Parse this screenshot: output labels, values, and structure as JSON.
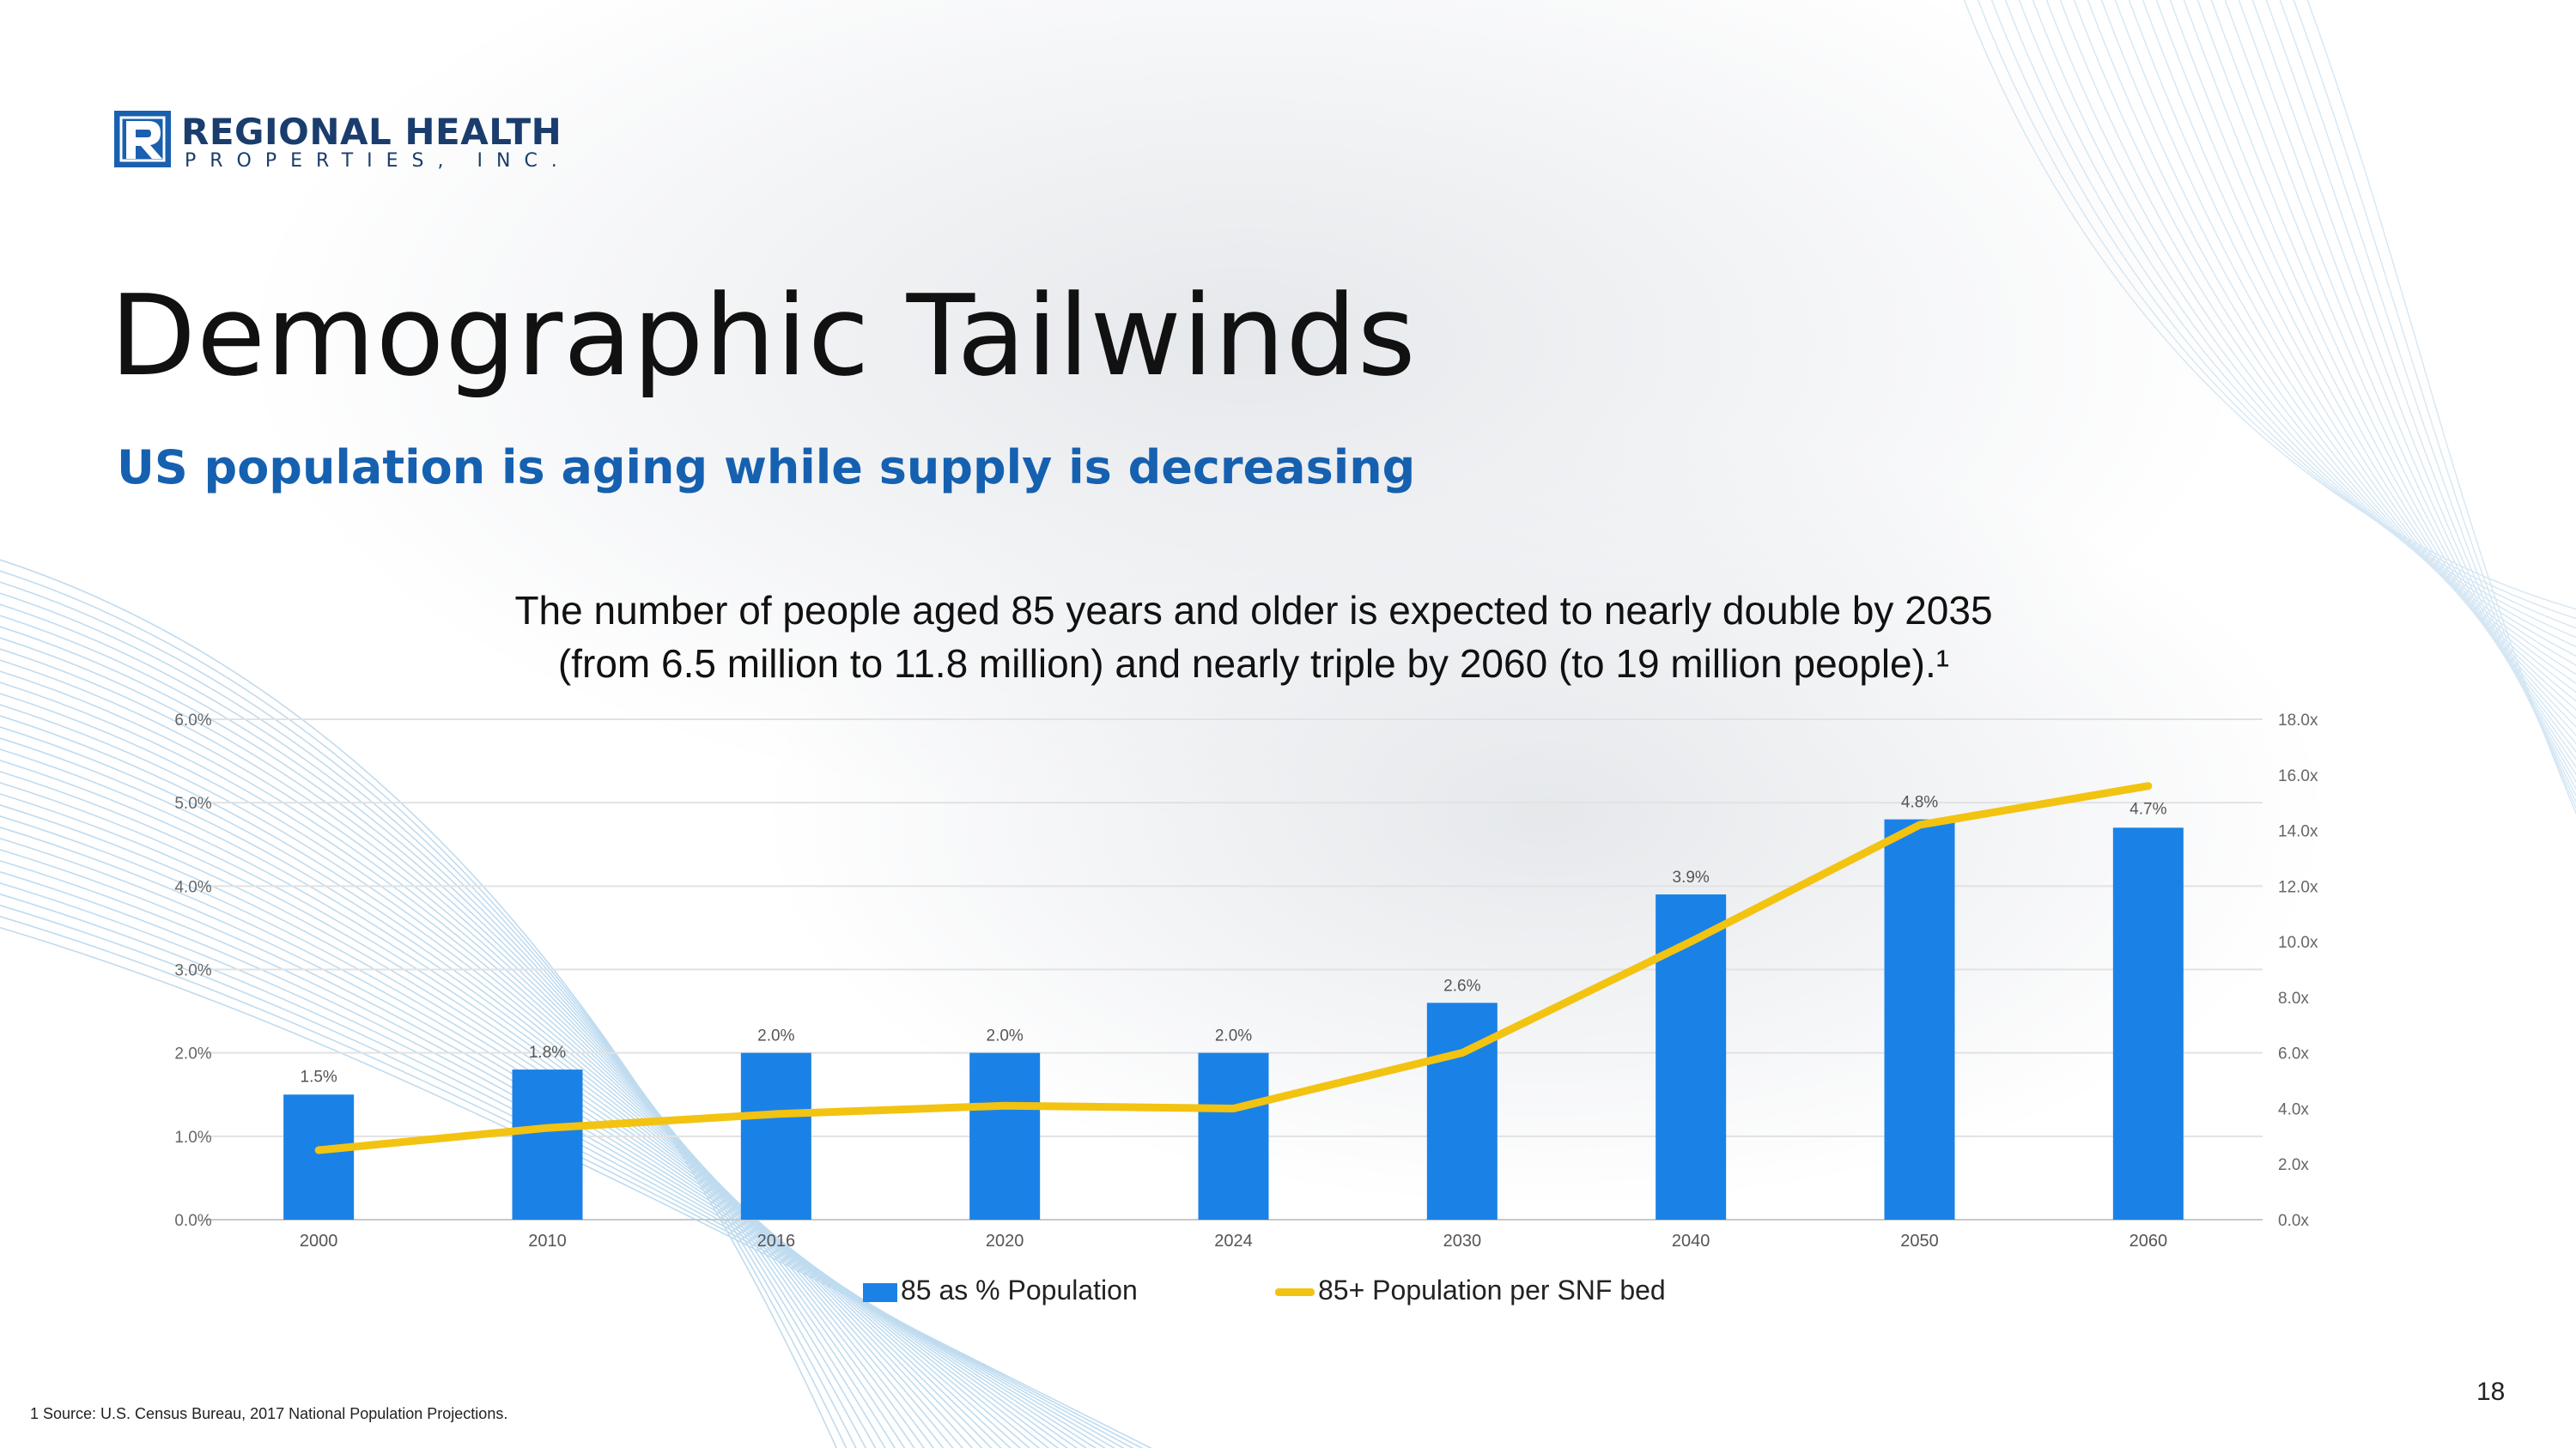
{
  "logo": {
    "line1": "REGIONAL HEALTH",
    "line2": "PROPERTIES, INC."
  },
  "title": "Demographic Tailwinds",
  "subtitle": "US population is aging while supply is decreasing",
  "description": {
    "line1": "The number of people aged 85 years and older is expected to nearly double by 2035",
    "line2": "(from 6.5 million to 11.8 million) and nearly triple by 2060 (to 19 million people).¹"
  },
  "colors": {
    "bar": "#1a82e6",
    "line": "#f2c311",
    "subtitle": "#1660b0",
    "brand": "#1a3d6d"
  },
  "chart_data": {
    "type": "bar",
    "title": "",
    "xlabel": "",
    "ylabel": "",
    "categories": [
      "2000",
      "2010",
      "2016",
      "2020",
      "2024",
      "2030",
      "2040",
      "2050",
      "2060"
    ],
    "series": [
      {
        "name": "85 as % Population",
        "type": "bar",
        "axis": "left",
        "values": [
          1.5,
          1.8,
          2.0,
          2.0,
          2.0,
          2.6,
          3.9,
          4.8,
          4.7
        ],
        "labels": [
          "1.5%",
          "1.8%",
          "2.0%",
          "2.0%",
          "2.0%",
          "2.6%",
          "3.9%",
          "4.8%",
          "4.7%"
        ]
      },
      {
        "name": "85+ Population per SNF bed",
        "type": "line",
        "axis": "right",
        "values": [
          2.5,
          3.3,
          3.8,
          4.1,
          4.0,
          6.0,
          10.0,
          14.2,
          15.6
        ]
      }
    ],
    "y_left": {
      "min": 0,
      "max": 6,
      "step": 1,
      "ticks": [
        "0.0%",
        "1.0%",
        "2.0%",
        "3.0%",
        "4.0%",
        "5.0%",
        "6.0%"
      ]
    },
    "y_right": {
      "min": 0,
      "max": 18,
      "step": 2,
      "ticks": [
        "0.0x",
        "2.0x",
        "4.0x",
        "6.0x",
        "8.0x",
        "10.0x",
        "12.0x",
        "14.0x",
        "16.0x",
        "18.0x"
      ]
    },
    "grid": true,
    "legend": "bottom"
  },
  "footnote": "1 Source: U.S. Census Bureau, 2017 National Population Projections.",
  "page_number": "18"
}
